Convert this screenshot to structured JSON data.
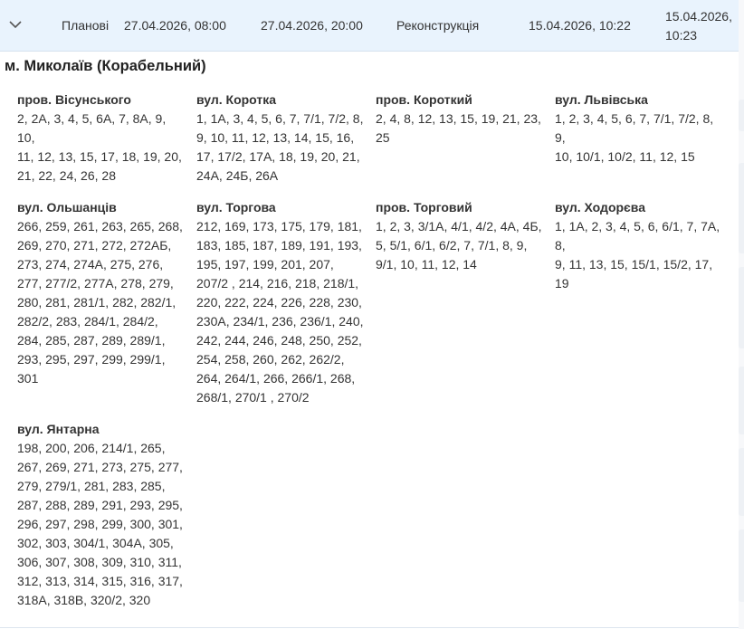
{
  "outage_row": {
    "type": "Планові",
    "start": "27.04.2026, 08:00",
    "end": "27.04.2026, 20:00",
    "reason": "Реконструкція",
    "created": "15.04.2026, 10:22",
    "updated_date": "15.04.2026,",
    "updated_time": "10:23",
    "expand_icon": "chevron-down-icon"
  },
  "city": "м. Миколаїв (Корабельний)",
  "streets": [
    {
      "name": "пров. Вісунського",
      "houses": [
        "2, 2А, 3, 4, 5, 6А, 7, 8А, 9, 10,",
        "11, 12, 13, 15, 17, 18, 19, 20,",
        "21, 22, 24, 26, 28"
      ]
    },
    {
      "name": "вул. Коротка",
      "houses": [
        "1, 1А, 3, 4, 5, 6, 7, 7/1, 7/2, 8,",
        "9, 10, 11, 12, 13, 14, 15, 16,",
        "17, 17/2, 17А, 18, 19, 20, 21,",
        "24А, 24Б, 26А"
      ]
    },
    {
      "name": "пров. Короткий",
      "houses": [
        "2, 4, 8, 12, 13, 15, 19, 21, 23,",
        "25"
      ]
    },
    {
      "name": "вул. Львівська",
      "houses": [
        "1, 2, 3, 4, 5, 6, 7, 7/1, 7/2, 8, 9,",
        "10, 10/1, 10/2, 11, 12, 15"
      ]
    },
    {
      "name": "вул. Ольшанців",
      "houses": [
        "266, 259, 261, 263, 265, 268,",
        "269, 270, 271, 272, 272АБ,",
        "273, 274, 274А, 275, 276,",
        "277, 277/2, 277А, 278, 279,",
        "280, 281, 281/1, 282, 282/1,",
        "282/2, 283, 284/1, 284/2,",
        "284, 285, 287, 289, 289/1,",
        "293, 295, 297, 299, 299/1,",
        "301"
      ]
    },
    {
      "name": "вул. Торгова",
      "houses": [
        "212, 169, 173, 175, 179, 181,",
        "183, 185, 187, 189, 191, 193,",
        "195, 197, 199, 201, 207,",
        "207/2 , 214, 216, 218, 218/1,",
        "220, 222, 224, 226, 228, 230,",
        "230А, 234/1, 236, 236/1, 240,",
        "242, 244, 246, 248, 250, 252,",
        "254, 258, 260, 262, 262/2,",
        "264, 264/1, 266, 266/1, 268,",
        "268/1, 270/1 , 270/2"
      ]
    },
    {
      "name": "пров. Торговий",
      "houses": [
        "1, 2, 3, 3/1А, 4/1, 4/2, 4А, 4Б,",
        "5, 5/1, 6/1, 6/2, 7, 7/1, 8, 9,",
        "9/1, 10, 11, 12, 14"
      ]
    },
    {
      "name": "вул. Ходорєва",
      "houses": [
        "1, 1А, 2, 3, 4, 5, 6, 6/1, 7, 7А, 8,",
        "9, 11, 13, 15, 15/1, 15/2, 17,",
        "19"
      ]
    },
    {
      "name": "вул. Янтарна",
      "houses": [
        "198, 200, 206, 214/1, 265,",
        "267, 269, 271, 273, 275, 277,",
        "279, 279/1, 281, 283, 285,",
        "287, 288, 289, 291, 293, 295,",
        "296, 297, 298, 299, 300, 301,",
        "302, 303, 304/1, 304А, 305,",
        "306, 307, 308, 309, 310, 311,",
        "312, 313, 314, 315, 316, 317,",
        "318А, 318В, 320/2, 320"
      ]
    }
  ]
}
